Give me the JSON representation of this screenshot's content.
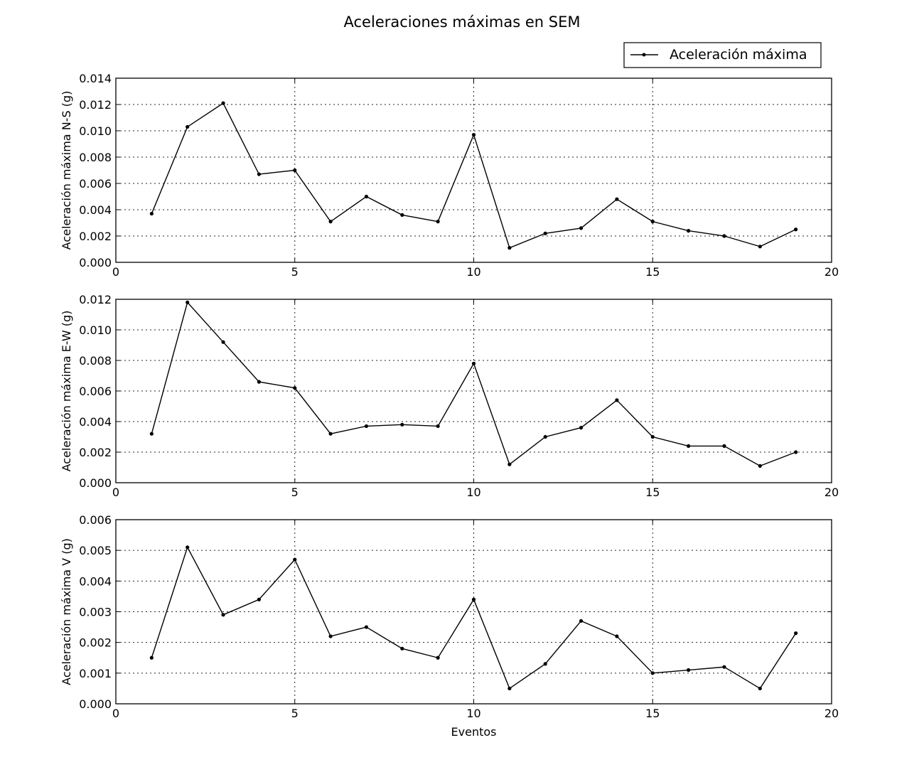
{
  "title": "Aceleraciones máximas en SEM",
  "legend": {
    "label": "Aceleración máxima",
    "placement": "top-right"
  },
  "chart_data": [
    {
      "type": "line",
      "title": "",
      "xlabel": "",
      "ylabel": "Aceleración máxima N-S (g)",
      "xlim": [
        0,
        20
      ],
      "ylim": [
        0,
        0.014
      ],
      "xticks": [
        0,
        5,
        10,
        15,
        20
      ],
      "yticks": [
        0,
        0.002,
        0.004,
        0.006,
        0.008,
        0.01,
        0.012,
        0.014
      ],
      "ytick_decimals": 3,
      "grid": true,
      "series": [
        {
          "name": "Aceleración máxima",
          "x": [
            1,
            2,
            3,
            4,
            5,
            6,
            7,
            8,
            9,
            10,
            11,
            12,
            13,
            14,
            15,
            16,
            17,
            18,
            19
          ],
          "values": [
            0.0037,
            0.0103,
            0.0121,
            0.0067,
            0.007,
            0.0031,
            0.005,
            0.0036,
            0.0031,
            0.0097,
            0.0011,
            0.0022,
            0.0026,
            0.0048,
            0.0031,
            0.0024,
            0.002,
            0.0012,
            0.0025
          ]
        }
      ]
    },
    {
      "type": "line",
      "title": "",
      "xlabel": "",
      "ylabel": "Aceleración máxima E-W (g)",
      "xlim": [
        0,
        20
      ],
      "ylim": [
        0,
        0.012
      ],
      "xticks": [
        0,
        5,
        10,
        15,
        20
      ],
      "yticks": [
        0,
        0.002,
        0.004,
        0.006,
        0.008,
        0.01,
        0.012
      ],
      "ytick_decimals": 3,
      "grid": true,
      "series": [
        {
          "name": "Aceleración máxima",
          "x": [
            1,
            2,
            3,
            4,
            5,
            6,
            7,
            8,
            9,
            10,
            11,
            12,
            13,
            14,
            15,
            16,
            17,
            18,
            19
          ],
          "values": [
            0.0032,
            0.0118,
            0.0092,
            0.0066,
            0.0062,
            0.0032,
            0.0037,
            0.0038,
            0.0037,
            0.0078,
            0.0012,
            0.003,
            0.0036,
            0.0054,
            0.003,
            0.0024,
            0.0024,
            0.0011,
            0.002
          ]
        }
      ]
    },
    {
      "type": "line",
      "title": "",
      "xlabel": "Eventos",
      "ylabel": "Aceleración máxima V (g)",
      "xlim": [
        0,
        20
      ],
      "ylim": [
        0,
        0.006
      ],
      "xticks": [
        0,
        5,
        10,
        15,
        20
      ],
      "yticks": [
        0,
        0.001,
        0.002,
        0.003,
        0.004,
        0.005,
        0.006
      ],
      "ytick_decimals": 3,
      "grid": true,
      "series": [
        {
          "name": "Aceleración máxima",
          "x": [
            1,
            2,
            3,
            4,
            5,
            6,
            7,
            8,
            9,
            10,
            11,
            12,
            13,
            14,
            15,
            16,
            17,
            18,
            19
          ],
          "values": [
            0.0015,
            0.0051,
            0.0029,
            0.0034,
            0.0047,
            0.0022,
            0.0025,
            0.0018,
            0.0015,
            0.0034,
            0.0005,
            0.0013,
            0.0027,
            0.0022,
            0.001,
            0.0011,
            0.0012,
            0.0005,
            0.0023
          ]
        }
      ]
    }
  ]
}
